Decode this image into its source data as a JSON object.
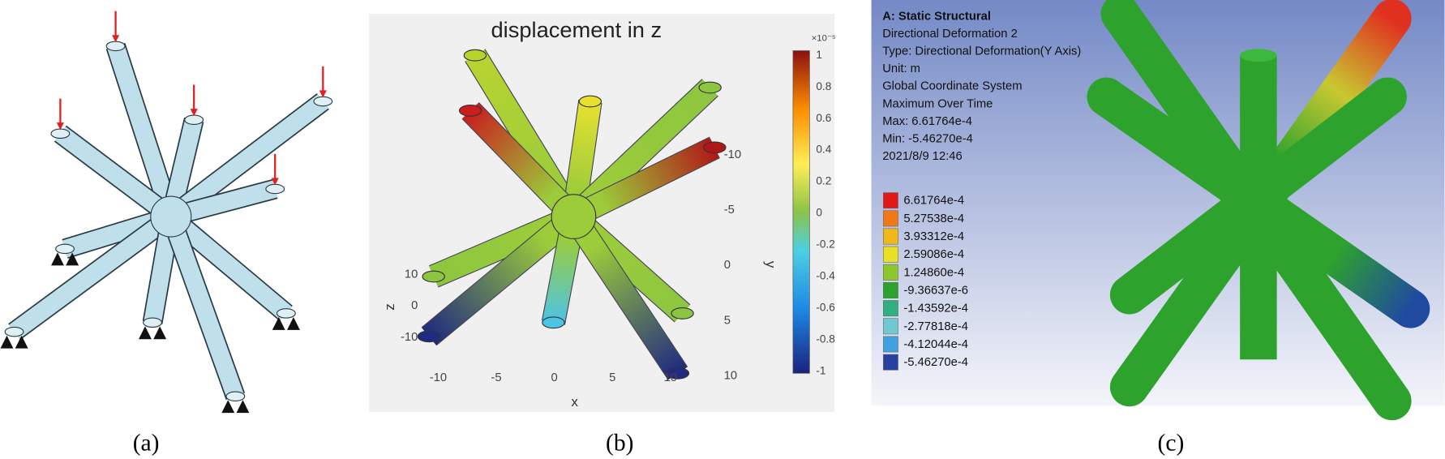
{
  "panels": [
    {
      "caption": "(a)"
    },
    {
      "caption": "(b)",
      "title": "displacement in z",
      "colorbar": {
        "exponent": "×10⁻⁵",
        "ticks": [
          "1",
          "0.8",
          "0.6",
          "0.4",
          "0.2",
          "0",
          "-0.2",
          "-0.4",
          "-0.6",
          "-0.8",
          "-1"
        ]
      },
      "axes": {
        "z": {
          "label": "z",
          "ticks": [
            "10",
            "0",
            "-10"
          ]
        },
        "x": {
          "label": "x",
          "ticks": [
            "-10",
            "-5",
            "0",
            "5",
            "10"
          ]
        },
        "y": {
          "label": "y",
          "ticks": [
            "-10",
            "-5",
            "0",
            "5",
            "10"
          ]
        }
      }
    },
    {
      "caption": "(c)",
      "info": [
        "A: Static Structural",
        "Directional Deformation 2",
        "Type: Directional Deformation(Y Axis)",
        "Unit: m",
        "Global Coordinate System",
        "Maximum Over Time",
        "Max: 6.61764e-4",
        "Min: -5.46270e-4",
        "2021/8/9 12:46"
      ],
      "legend": [
        "6.61764e-4",
        "5.27538e-4",
        "3.93312e-4",
        "2.59086e-4",
        "1.24860e-4",
        "-9.36637e-6",
        "-1.43592e-4",
        "-2.77818e-4",
        "-4.12044e-4",
        "-5.46270e-4"
      ]
    }
  ]
}
